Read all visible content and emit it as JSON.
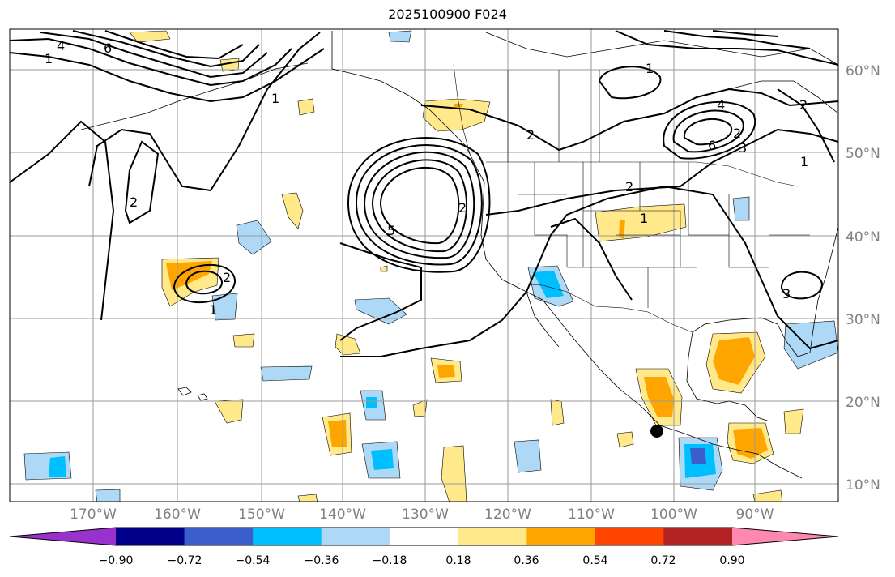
{
  "title": "2025100900 F024",
  "lon_labels": [
    "170°W",
    "160°W",
    "150°W",
    "140°W",
    "130°W",
    "120°W",
    "110°W",
    "100°W",
    "90°W"
  ],
  "lat_labels": [
    "60°N",
    "50°N",
    "40°N",
    "30°N",
    "20°N",
    "10°N"
  ],
  "contour_labels": [
    "1",
    "4",
    "6",
    "1",
    "2",
    "2",
    "2",
    "1",
    "2",
    "5",
    "4",
    "1",
    "2",
    "3",
    "1",
    "6",
    "2",
    "2",
    "1",
    "3"
  ],
  "colorbar": {
    "ticks": [
      "−0.90",
      "−0.72",
      "−0.54",
      "−0.36",
      "−0.18",
      "0.18",
      "0.36",
      "0.54",
      "0.72",
      "0.90"
    ],
    "colors": [
      "#9932cc",
      "#00008b",
      "#3a5fcd",
      "#00bfff",
      "#add8f6",
      "#ffffff",
      "#ffe98a",
      "#ffa500",
      "#ff4500",
      "#b22222",
      "#ff88b0"
    ]
  },
  "fill_colors": {
    "light_yellow": "#ffe98a",
    "orange": "#ffa500",
    "light_blue": "#add8f6",
    "deep_sky_blue": "#00bfff",
    "royal_blue": "#3a5fcd"
  },
  "marker": "storm-center-marker"
}
